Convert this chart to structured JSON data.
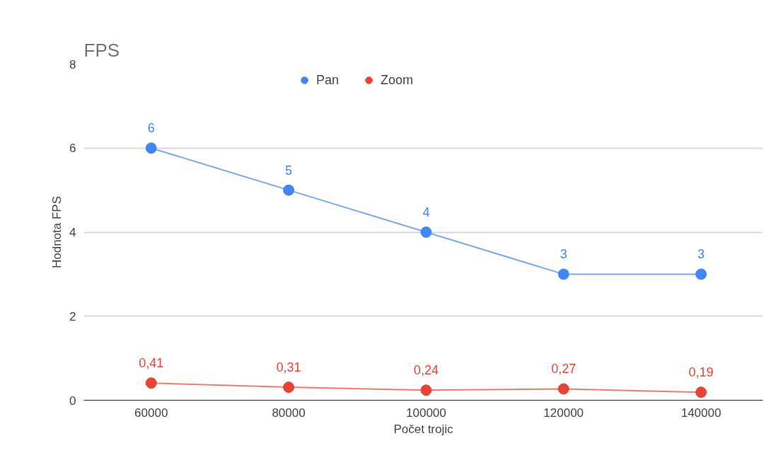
{
  "chart_data": {
    "type": "line",
    "title": "FPS",
    "xlabel": "Počet trojic",
    "ylabel": "Hodnota FPS",
    "categories": [
      "60000",
      "80000",
      "100000",
      "120000",
      "140000"
    ],
    "series": [
      {
        "name": "Pan",
        "color": "#4285f4",
        "values": [
          6,
          5,
          4,
          3,
          3
        ],
        "value_labels": [
          "6",
          "5",
          "4",
          "3",
          "3"
        ]
      },
      {
        "name": "Zoom",
        "color": "#ea4335",
        "values": [
          0.41,
          0.31,
          0.24,
          0.27,
          0.19
        ],
        "value_labels": [
          "0,41",
          "0,31",
          "0,24",
          "0,27",
          "0,19"
        ]
      }
    ],
    "ylim": [
      0,
      8
    ],
    "yticks": [
      0,
      2,
      4,
      6,
      8
    ],
    "grid": "y",
    "legend": "top",
    "marker": "circle",
    "line_style": "solid"
  }
}
